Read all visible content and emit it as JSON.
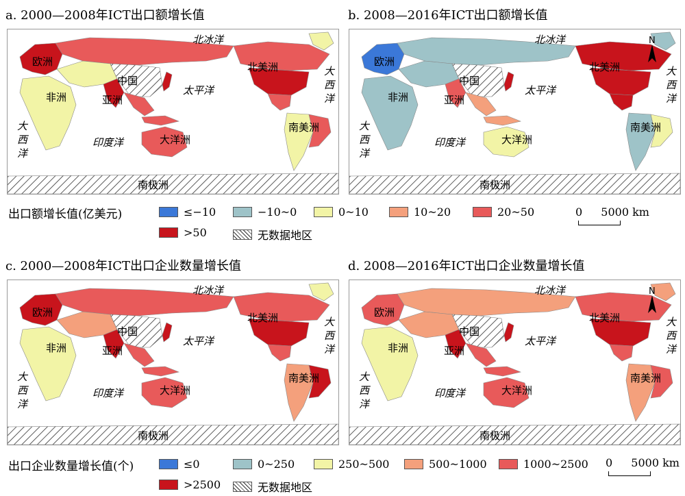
{
  "colors": {
    "c1": "#3b78d8",
    "c2": "#9ec3c8",
    "c3": "#f2f4a6",
    "c4": "#f4a07c",
    "c5": "#e85a5a",
    "c6": "#c8141c",
    "nodata": "hatch"
  },
  "panels": [
    {
      "title": "a. 2000—2008年ICT出口额增长值"
    },
    {
      "title": "b. 2008—2016年ICT出口额增长值"
    },
    {
      "title": "c. 2000—2008年ICT出口企业数量增长值"
    },
    {
      "title": "d. 2008—2016年ICT出口企业数量增长值"
    }
  ],
  "map_labels": {
    "europe": "欧洲",
    "asia": "亚洲",
    "china": "中国",
    "africa": "非洲",
    "oceania": "大洋洲",
    "north_america": "北美洲",
    "south_america": "南美洲",
    "antarctica": "南极洲",
    "arctic": "北冰洋",
    "pacific": "太平洋",
    "indian": "印度洋",
    "atlantic": "大西洋",
    "north": "N"
  },
  "legend_export": {
    "title": "出口额增长值(亿美元)",
    "items": [
      {
        "label": "≤−10",
        "color": "#3b78d8"
      },
      {
        "label": "−10~0",
        "color": "#9ec3c8"
      },
      {
        "label": "0~10",
        "color": "#f2f4a6"
      },
      {
        "label": "10~20",
        "color": "#f4a07c"
      },
      {
        "label": "20~50",
        "color": "#e85a5a"
      },
      {
        "label": ">50",
        "color": "#c8141c"
      },
      {
        "label": "无数据地区",
        "color": "hatch"
      }
    ]
  },
  "legend_firms": {
    "title": "出口企业数量增长值(个)",
    "items": [
      {
        "label": "≤0",
        "color": "#3b78d8"
      },
      {
        "label": "0~250",
        "color": "#9ec3c8"
      },
      {
        "label": "250~500",
        "color": "#f2f4a6"
      },
      {
        "label": "500~1000",
        "color": "#f4a07c"
      },
      {
        "label": "1000~2500",
        "color": "#e85a5a"
      },
      {
        "label": ">2500",
        "color": "#c8141c"
      },
      {
        "label": "无数据地区",
        "color": "hatch"
      }
    ]
  },
  "scale": {
    "zero": "0",
    "distance": "5000",
    "unit": "km"
  }
}
